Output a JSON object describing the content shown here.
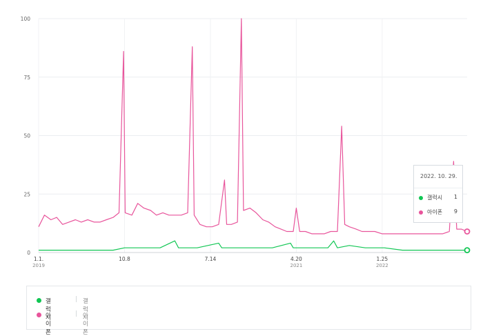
{
  "chart_data": {
    "type": "line",
    "ylim": [
      0,
      100
    ],
    "y_ticks": [
      "0",
      "25",
      "50",
      "75",
      "100"
    ],
    "x_ticks": [
      {
        "label": "1.1.",
        "year": "2019",
        "date": "2019-01-01"
      },
      {
        "label": "10.8",
        "year": "",
        "date": "2019-10-08"
      },
      {
        "label": "7.14",
        "year": "",
        "date": "2020-07-14"
      },
      {
        "label": "4.20",
        "year": "2021",
        "date": "2021-04-20"
      },
      {
        "label": "1.25",
        "year": "2022",
        "date": "2022-01-25"
      }
    ],
    "grid": true,
    "series": [
      {
        "name": "아이폰",
        "color": "#e8549b",
        "points": [
          [
            "2019-01-01",
            11
          ],
          [
            "2019-01-20",
            16
          ],
          [
            "2019-02-10",
            14
          ],
          [
            "2019-03-01",
            15
          ],
          [
            "2019-03-20",
            12
          ],
          [
            "2019-04-10",
            13
          ],
          [
            "2019-05-01",
            14
          ],
          [
            "2019-05-20",
            13
          ],
          [
            "2019-06-10",
            14
          ],
          [
            "2019-07-01",
            13
          ],
          [
            "2019-07-20",
            13
          ],
          [
            "2019-08-10",
            14
          ],
          [
            "2019-09-01",
            15
          ],
          [
            "2019-09-20",
            17
          ],
          [
            "2019-10-05",
            86
          ],
          [
            "2019-10-10",
            17
          ],
          [
            "2019-11-01",
            16
          ],
          [
            "2019-11-20",
            21
          ],
          [
            "2019-12-10",
            19
          ],
          [
            "2020-01-01",
            18
          ],
          [
            "2020-01-20",
            16
          ],
          [
            "2020-02-10",
            17
          ],
          [
            "2020-03-01",
            16
          ],
          [
            "2020-03-20",
            16
          ],
          [
            "2020-04-10",
            16
          ],
          [
            "2020-05-01",
            17
          ],
          [
            "2020-05-16",
            88
          ],
          [
            "2020-05-22",
            16
          ],
          [
            "2020-06-10",
            12
          ],
          [
            "2020-07-01",
            11
          ],
          [
            "2020-07-20",
            11
          ],
          [
            "2020-08-10",
            12
          ],
          [
            "2020-08-29",
            31
          ],
          [
            "2020-09-05",
            12
          ],
          [
            "2020-09-20",
            12
          ],
          [
            "2020-10-10",
            13
          ],
          [
            "2020-10-23",
            100
          ],
          [
            "2020-10-30",
            18
          ],
          [
            "2020-11-20",
            19
          ],
          [
            "2020-12-10",
            17
          ],
          [
            "2021-01-01",
            14
          ],
          [
            "2021-01-20",
            13
          ],
          [
            "2021-02-10",
            11
          ],
          [
            "2021-03-01",
            10
          ],
          [
            "2021-03-20",
            9
          ],
          [
            "2021-04-10",
            9
          ],
          [
            "2021-04-20",
            19
          ],
          [
            "2021-05-01",
            9
          ],
          [
            "2021-05-20",
            9
          ],
          [
            "2021-06-10",
            8
          ],
          [
            "2021-07-01",
            8
          ],
          [
            "2021-07-20",
            8
          ],
          [
            "2021-08-10",
            9
          ],
          [
            "2021-09-01",
            9
          ],
          [
            "2021-09-15",
            54
          ],
          [
            "2021-09-25",
            12
          ],
          [
            "2021-10-10",
            11
          ],
          [
            "2021-11-01",
            10
          ],
          [
            "2021-11-20",
            9
          ],
          [
            "2021-12-10",
            9
          ],
          [
            "2022-01-01",
            9
          ],
          [
            "2022-01-25",
            8
          ],
          [
            "2022-02-10",
            8
          ],
          [
            "2022-03-01",
            8
          ],
          [
            "2022-03-20",
            8
          ],
          [
            "2022-04-10",
            8
          ],
          [
            "2022-05-01",
            8
          ],
          [
            "2022-05-20",
            8
          ],
          [
            "2022-06-10",
            8
          ],
          [
            "2022-07-01",
            8
          ],
          [
            "2022-07-20",
            8
          ],
          [
            "2022-08-10",
            8
          ],
          [
            "2022-09-01",
            9
          ],
          [
            "2022-09-15",
            39
          ],
          [
            "2022-09-25",
            10
          ],
          [
            "2022-10-10",
            10
          ],
          [
            "2022-10-29",
            9
          ]
        ]
      },
      {
        "name": "갤럭시",
        "color": "#10c653",
        "points": [
          [
            "2019-01-01",
            1
          ],
          [
            "2019-03-01",
            1
          ],
          [
            "2019-05-01",
            1
          ],
          [
            "2019-07-01",
            1
          ],
          [
            "2019-09-01",
            1
          ],
          [
            "2019-10-08",
            2
          ],
          [
            "2019-12-01",
            2
          ],
          [
            "2020-02-01",
            2
          ],
          [
            "2020-03-20",
            5
          ],
          [
            "2020-04-01",
            2
          ],
          [
            "2020-06-01",
            2
          ],
          [
            "2020-08-10",
            4
          ],
          [
            "2020-08-20",
            2
          ],
          [
            "2020-10-23",
            2
          ],
          [
            "2020-12-01",
            2
          ],
          [
            "2021-02-01",
            2
          ],
          [
            "2021-04-01",
            4
          ],
          [
            "2021-04-10",
            2
          ],
          [
            "2021-06-01",
            2
          ],
          [
            "2021-08-01",
            2
          ],
          [
            "2021-08-20",
            5
          ],
          [
            "2021-09-01",
            2
          ],
          [
            "2021-10-10",
            3
          ],
          [
            "2021-12-01",
            2
          ],
          [
            "2022-02-01",
            2
          ],
          [
            "2022-04-01",
            1
          ],
          [
            "2022-06-01",
            1
          ],
          [
            "2022-08-01",
            1
          ],
          [
            "2022-10-29",
            1
          ]
        ]
      }
    ]
  },
  "tooltip": {
    "date": "2022. 10. 29.",
    "rows": [
      {
        "name": "갤럭시",
        "value": "1",
        "color": "#10c653"
      },
      {
        "name": "아이폰",
        "value": "9",
        "color": "#e8549b"
      }
    ]
  },
  "legend": {
    "items": [
      {
        "name": "갤럭시",
        "sep": "|",
        "sub": "갤럭시",
        "color": "#10c653"
      },
      {
        "name": "아이폰",
        "sep": "|",
        "sub": "아이폰",
        "color": "#e8549b"
      }
    ]
  }
}
